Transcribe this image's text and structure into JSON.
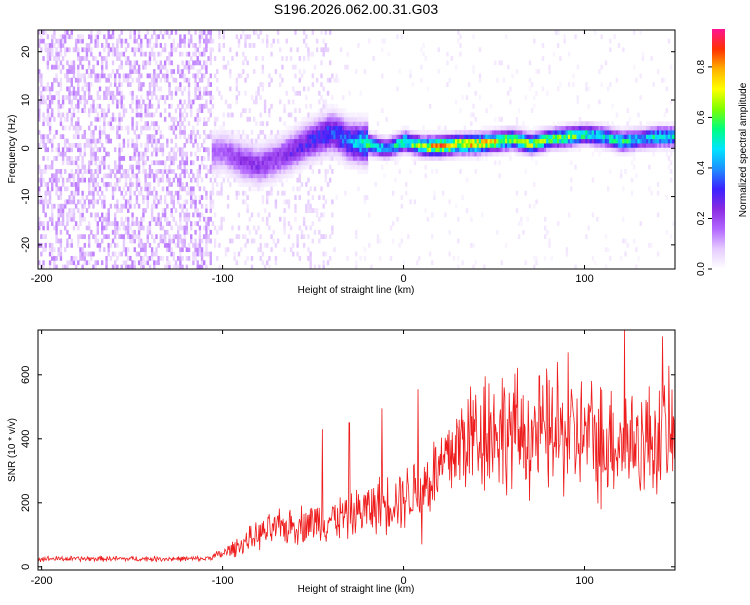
{
  "colors": {
    "purple": "#8a2be2",
    "red": "#ee1c1c",
    "colormap": [
      "#ffffff",
      "#e6ccff",
      "#b266ff",
      "#8a2be2",
      "#3b22ff",
      "#1e90ff",
      "#00e5ff",
      "#00ff7f",
      "#7fff00",
      "#ffff00",
      "#ffb000",
      "#ff3000",
      "#ff1493"
    ]
  },
  "chart_data": [
    {
      "type": "heatmap",
      "title": "S196.2026.062.00.31.G03",
      "xlabel": "Height of straight line (km)",
      "ylabel": "Frequency (Hz)",
      "xlim": [
        -202,
        150
      ],
      "ylim": [
        -25,
        24.5
      ],
      "xticks": [
        -200,
        -100,
        0,
        100
      ],
      "yticks": [
        -20,
        -10,
        0,
        10,
        20
      ],
      "ridge": {
        "description": "frequency of peak spectral amplitude vs height",
        "x": [
          -107,
          -100,
          -90,
          -80,
          -70,
          -60,
          -50,
          -40,
          -30,
          -20,
          -10,
          0,
          10,
          20,
          30,
          40,
          50,
          60,
          70,
          80,
          90,
          100,
          110,
          120,
          130,
          140,
          150
        ],
        "y": [
          -1.5,
          -1.0,
          -3.0,
          -4.0,
          -2.5,
          -0.5,
          1.5,
          3.0,
          1.0,
          0.5,
          -0.5,
          1.0,
          0.0,
          0.0,
          0.5,
          0.5,
          1.0,
          1.5,
          0.5,
          1.5,
          2.0,
          2.5,
          2.0,
          1.0,
          1.5,
          2.0,
          2.0
        ],
        "amplitude": [
          0.2,
          0.2,
          0.25,
          0.25,
          0.25,
          0.3,
          0.35,
          0.4,
          0.45,
          0.6,
          0.5,
          0.65,
          0.75,
          0.9,
          0.8,
          0.85,
          0.8,
          0.7,
          0.75,
          0.65,
          0.7,
          0.6,
          0.55,
          0.6,
          0.5,
          0.6,
          0.55
        ]
      },
      "noise_region": {
        "x_from": -202,
        "x_to": -107,
        "amplitude": 0.1
      }
    },
    {
      "type": "colorbar",
      "label": "Normalized spectral amplitude",
      "range": [
        0.0,
        0.95
      ],
      "ticks": [
        0.0,
        0.2,
        0.4,
        0.6,
        0.8
      ]
    },
    {
      "type": "line",
      "xlabel": "Height of straight line (km)",
      "ylabel": "SNR (10 * v/v)",
      "xlim": [
        -202,
        150
      ],
      "ylim": [
        -10,
        740
      ],
      "xticks": [
        -200,
        -100,
        0,
        100
      ],
      "yticks": [
        0,
        200,
        400,
        600
      ],
      "series": [
        {
          "name": "SNR",
          "envelope_x": [
            -202,
            -110,
            -100,
            -90,
            -80,
            -70,
            -60,
            -50,
            -40,
            -30,
            -20,
            -10,
            0,
            10,
            20,
            30,
            40,
            50,
            60,
            70,
            80,
            90,
            100,
            110,
            120,
            130,
            140,
            150
          ],
          "envelope_y": [
            25,
            25,
            40,
            70,
            100,
            120,
            130,
            140,
            150,
            160,
            180,
            200,
            220,
            250,
            300,
            380,
            420,
            430,
            420,
            410,
            420,
            400,
            410,
            400,
            400,
            390,
            400,
            410
          ],
          "peaks": [
            {
              "x": 45,
              "y": 595
            },
            {
              "x": 85,
              "y": 640
            },
            {
              "x": 91,
              "y": 670
            },
            {
              "x": 122,
              "y": 745
            },
            {
              "x": 143,
              "y": 720
            },
            {
              "x": -45,
              "y": 430
            },
            {
              "x": -30,
              "y": 450
            },
            {
              "x": -12,
              "y": 495
            },
            {
              "x": 8,
              "y": 555
            }
          ],
          "dips": [
            {
              "x": 10,
              "y": 70
            },
            {
              "x": 109,
              "y": 180
            }
          ]
        }
      ]
    }
  ]
}
